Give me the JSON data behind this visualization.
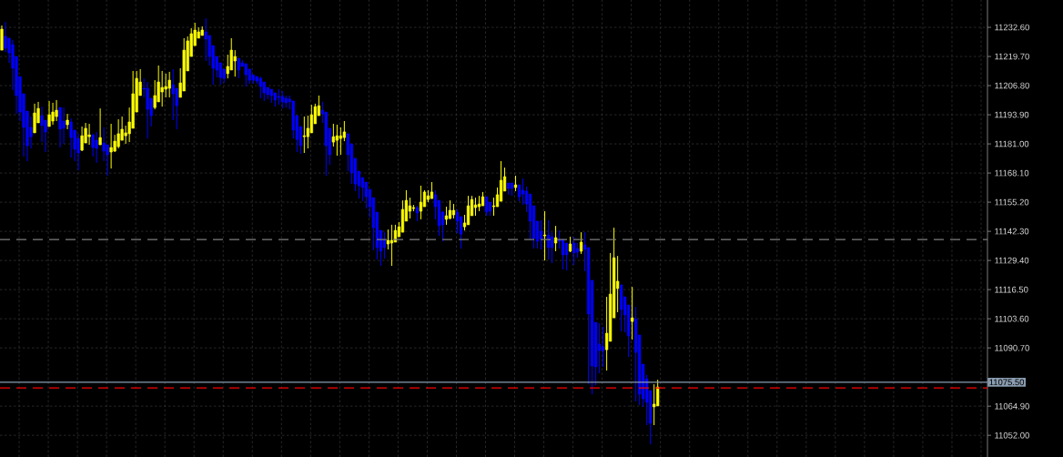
{
  "chart_data": {
    "type": "candlestick",
    "categories": [
      null,
      null,
      null,
      null,
      null,
      null,
      null,
      null,
      null,
      null,
      null,
      null,
      null,
      null,
      null,
      null,
      null,
      null,
      null,
      null,
      null,
      null,
      null,
      null,
      null,
      null,
      null,
      null,
      null,
      null,
      null,
      null,
      null,
      null,
      null,
      null,
      null,
      null,
      null,
      null,
      null,
      null,
      null,
      null,
      null,
      null,
      null,
      null,
      null,
      null,
      null,
      null,
      null,
      null,
      null,
      null,
      null,
      null,
      null,
      null,
      null,
      null,
      null,
      null,
      null,
      null,
      null,
      null,
      null,
      null,
      null,
      null,
      null,
      null,
      null,
      null,
      null,
      null,
      null,
      null,
      null,
      null,
      null,
      null,
      null,
      null,
      null,
      null,
      null,
      null,
      null,
      null,
      null,
      null,
      null,
      null,
      null,
      null,
      null,
      null,
      null,
      null,
      null,
      null,
      null,
      null,
      null,
      null,
      null,
      null,
      null,
      null,
      null,
      null,
      null,
      null,
      null,
      null,
      null,
      null,
      null,
      null,
      null,
      null,
      null,
      null,
      null,
      null,
      null,
      null,
      null,
      null,
      null,
      null,
      null,
      null,
      null,
      null,
      null,
      null,
      null,
      null,
      null,
      null,
      null,
      null,
      null,
      null,
      null,
      null,
      null,
      null,
      null,
      null,
      null,
      null,
      null,
      null,
      null,
      null,
      null,
      null,
      null,
      null,
      null,
      null,
      null,
      null,
      null,
      null,
      null,
      null,
      null,
      null,
      null,
      null,
      null,
      null,
      null,
      null,
      null,
      null,
      null,
      null,
      null,
      null,
      null,
      null,
      null,
      null,
      null,
      null,
      null,
      null,
      null,
      null,
      null,
      null,
      null,
      null,
      null,
      null,
      null,
      null,
      null,
      null,
      null,
      null,
      null,
      null,
      null,
      null,
      null,
      null,
      null,
      null,
      null,
      null,
      null,
      null,
      null,
      null,
      null,
      null,
      null,
      null,
      null,
      null,
      null,
      null,
      null,
      null,
      null,
      null,
      null,
      null,
      null,
      null,
      null,
      null,
      null,
      null,
      null,
      null,
      null,
      null,
      null,
      null,
      null,
      null,
      null,
      null,
      null,
      null,
      null,
      null,
      null,
      null,
      null,
      null,
      null,
      null,
      null,
      null,
      null,
      null,
      null,
      null,
      null,
      null,
      null
    ],
    "ohlc": [
      [
        11222.5,
        11233.4,
        11222.5,
        11231.8
      ],
      [
        11228.6,
        11235.0,
        11221.7,
        11223.3
      ],
      [
        11227.8,
        11227.8,
        11216.9,
        11221.3
      ],
      [
        11224.9,
        11227.0,
        11204.8,
        11214.5
      ],
      [
        11219.7,
        11219.7,
        11194.3,
        11202.4
      ],
      [
        11210.8,
        11210.8,
        11191.1,
        11195.1
      ],
      [
        11203.2,
        11203.2,
        11175.4,
        11188.3
      ],
      [
        11195.5,
        11195.5,
        11173.4,
        11180.2
      ],
      [
        11188.3,
        11193.1,
        11179.0,
        11184.2
      ],
      [
        11185.9,
        11198.8,
        11185.9,
        11194.7
      ],
      [
        11190.3,
        11199.6,
        11190.3,
        11196.7
      ],
      [
        11193.5,
        11197.5,
        11181.8,
        11189.1
      ],
      [
        11191.5,
        11191.5,
        11177.4,
        11186.3
      ],
      [
        11188.7,
        11200.0,
        11188.7,
        11193.9
      ],
      [
        11191.1,
        11199.2,
        11189.5,
        11195.1
      ],
      [
        11193.1,
        11200.4,
        11191.1,
        11195.9
      ],
      [
        11197.1,
        11197.1,
        11179.4,
        11187.5
      ],
      [
        11191.1,
        11197.1,
        11181.0,
        11187.9
      ],
      [
        11189.5,
        11194.3,
        11187.5,
        11191.5
      ],
      [
        11190.7,
        11192.3,
        11175.0,
        11183.8
      ],
      [
        11187.1,
        11187.1,
        11173.4,
        11178.6
      ],
      [
        11183.4,
        11185.5,
        11169.3,
        11177.0
      ],
      [
        11178.2,
        11188.7,
        11177.8,
        11184.6
      ],
      [
        11181.4,
        11190.3,
        11181.4,
        11187.9
      ],
      [
        11184.2,
        11189.9,
        11180.6,
        11185.0
      ],
      [
        11185.0,
        11185.5,
        11175.4,
        11179.4
      ],
      [
        11182.6,
        11186.3,
        11172.6,
        11179.0
      ],
      [
        11180.6,
        11196.7,
        11180.6,
        11183.8
      ],
      [
        11181.4,
        11188.3,
        11173.4,
        11177.8
      ],
      [
        11180.6,
        11180.6,
        11166.9,
        11176.2
      ],
      [
        11177.4,
        11189.9,
        11170.1,
        11179.4
      ],
      [
        11177.8,
        11185.0,
        11177.4,
        11182.2
      ],
      [
        11179.8,
        11191.9,
        11179.0,
        11185.5
      ],
      [
        11182.6,
        11193.1,
        11182.6,
        11187.5
      ],
      [
        11184.6,
        11189.1,
        11181.0,
        11185.9
      ],
      [
        11185.5,
        11197.1,
        11181.8,
        11190.7
      ],
      [
        11187.9,
        11213.3,
        11187.9,
        11203.2
      ],
      [
        11195.1,
        11213.3,
        11195.1,
        11210.0
      ],
      [
        11202.4,
        11214.1,
        11202.4,
        11208.4
      ],
      [
        11205.6,
        11210.0,
        11201.6,
        11205.2
      ],
      [
        11205.6,
        11208.4,
        11183.4,
        11196.3
      ],
      [
        11201.2,
        11201.2,
        11188.7,
        11193.5
      ],
      [
        11197.1,
        11209.2,
        11196.3,
        11202.4
      ],
      [
        11199.6,
        11215.7,
        11199.6,
        11208.4
      ],
      [
        11204.0,
        11213.3,
        11197.5,
        11206.0
      ],
      [
        11205.2,
        11212.1,
        11201.6,
        11206.4
      ],
      [
        11205.6,
        11212.9,
        11201.6,
        11209.2
      ],
      [
        11207.2,
        11214.1,
        11191.5,
        11203.2
      ],
      [
        11205.6,
        11205.6,
        11187.5,
        11197.9
      ],
      [
        11201.6,
        11214.5,
        11201.6,
        11208.0
      ],
      [
        11204.4,
        11227.8,
        11204.4,
        11222.5
      ],
      [
        11213.3,
        11228.6,
        11213.3,
        11226.6
      ],
      [
        11219.7,
        11232.2,
        11219.7,
        11229.8
      ],
      [
        11224.5,
        11234.6,
        11224.5,
        11231.4
      ],
      [
        11227.8,
        11232.6,
        11227.8,
        11230.6
      ],
      [
        11229.0,
        11233.0,
        11229.0,
        11231.4
      ],
      [
        11230.6,
        11236.6,
        11217.7,
        11227.4
      ],
      [
        11229.0,
        11229.0,
        11215.7,
        11219.7
      ],
      [
        11224.5,
        11224.5,
        11207.2,
        11214.5
      ],
      [
        11219.7,
        11219.7,
        11210.4,
        11213.7
      ],
      [
        11216.9,
        11216.9,
        11207.2,
        11210.4
      ],
      [
        11214.1,
        11214.1,
        11208.0,
        11210.0
      ],
      [
        11212.1,
        11220.5,
        11210.0,
        11215.3
      ],
      [
        11213.7,
        11227.8,
        11213.7,
        11222.5
      ],
      [
        11217.7,
        11222.5,
        11210.8,
        11219.7
      ],
      [
        11218.9,
        11218.9,
        11210.0,
        11213.7
      ],
      [
        11216.9,
        11218.1,
        11215.3,
        11215.3
      ],
      [
        11216.5,
        11216.5,
        11206.4,
        11211.6
      ],
      [
        11214.1,
        11214.1,
        11207.6,
        11209.2
      ],
      [
        11211.6,
        11211.6,
        11207.6,
        11209.2
      ],
      [
        11210.8,
        11210.8,
        11207.6,
        11208.8
      ],
      [
        11210.0,
        11210.8,
        11201.2,
        11206.4
      ],
      [
        11208.4,
        11208.4,
        11200.0,
        11203.6
      ],
      [
        11206.0,
        11206.0,
        11200.8,
        11202.8
      ],
      [
        11205.2,
        11205.2,
        11199.2,
        11202.4
      ],
      [
        11203.6,
        11203.6,
        11197.5,
        11200.4
      ],
      [
        11202.0,
        11205.2,
        11198.3,
        11201.6
      ],
      [
        11202.0,
        11204.4,
        11196.7,
        11199.6
      ],
      [
        11201.2,
        11202.4,
        11197.1,
        11199.2
      ],
      [
        11200.8,
        11202.4,
        11196.3,
        11199.6
      ],
      [
        11200.0,
        11200.0,
        11183.4,
        11187.1
      ],
      [
        11193.5,
        11193.5,
        11177.4,
        11183.0
      ],
      [
        11188.7,
        11188.7,
        11176.6,
        11180.2
      ],
      [
        11184.2,
        11193.1,
        11177.0,
        11184.6
      ],
      [
        11184.2,
        11193.5,
        11179.0,
        11187.9
      ],
      [
        11185.9,
        11198.3,
        11185.9,
        11193.9
      ],
      [
        11189.9,
        11198.8,
        11189.9,
        11197.5
      ],
      [
        11193.5,
        11202.4,
        11193.5,
        11197.9
      ],
      [
        11195.9,
        11199.6,
        11190.3,
        11194.3
      ],
      [
        11195.1,
        11195.1,
        11166.9,
        11180.2
      ],
      [
        11187.9,
        11187.9,
        11171.8,
        11176.2
      ],
      [
        11181.8,
        11189.9,
        11179.8,
        11184.2
      ],
      [
        11182.6,
        11189.5,
        11175.8,
        11184.6
      ],
      [
        11183.4,
        11188.3,
        11176.2,
        11184.6
      ],
      [
        11183.8,
        11191.1,
        11182.2,
        11186.3
      ],
      [
        11185.5,
        11185.5,
        11168.9,
        11176.2
      ],
      [
        11181.0,
        11181.0,
        11163.3,
        11168.1
      ],
      [
        11174.6,
        11174.6,
        11160.1,
        11163.3
      ],
      [
        11168.9,
        11168.9,
        11156.8,
        11162.5
      ],
      [
        11166.1,
        11166.1,
        11155.6,
        11161.7
      ],
      [
        11164.1,
        11164.1,
        11152.4,
        11157.6
      ],
      [
        11160.9,
        11160.9,
        11148.4,
        11153.2
      ],
      [
        11157.2,
        11157.2,
        11133.9,
        11143.9
      ],
      [
        11150.8,
        11150.8,
        11129.8,
        11135.1
      ],
      [
        11142.7,
        11142.7,
        11127.0,
        11133.5
      ],
      [
        11138.7,
        11141.9,
        11130.2,
        11135.1
      ],
      [
        11136.7,
        11143.1,
        11134.3,
        11138.3
      ],
      [
        11137.1,
        11145.2,
        11127.0,
        11138.3
      ],
      [
        11137.5,
        11145.2,
        11137.5,
        11142.7
      ],
      [
        11139.9,
        11146.4,
        11139.9,
        11144.3
      ],
      [
        11141.9,
        11156.0,
        11141.9,
        11152.0
      ],
      [
        11146.8,
        11160.5,
        11146.8,
        11156.0
      ],
      [
        11151.2,
        11157.2,
        11148.0,
        11153.6
      ],
      [
        11152.4,
        11154.0,
        11151.2,
        11152.8
      ],
      [
        11152.8,
        11153.6,
        11146.8,
        11150.4
      ],
      [
        11151.2,
        11162.5,
        11147.6,
        11155.2
      ],
      [
        11153.2,
        11160.5,
        11153.2,
        11159.7
      ],
      [
        11156.4,
        11160.5,
        11155.2,
        11158.0
      ],
      [
        11156.8,
        11164.1,
        11156.8,
        11159.7
      ],
      [
        11158.5,
        11160.5,
        11147.6,
        11153.2
      ],
      [
        11156.0,
        11156.0,
        11140.3,
        11144.8
      ],
      [
        11150.8,
        11151.2,
        11137.9,
        11145.2
      ],
      [
        11147.6,
        11153.2,
        11145.2,
        11149.2
      ],
      [
        11148.0,
        11156.0,
        11147.6,
        11151.6
      ],
      [
        11149.6,
        11154.4,
        11148.0,
        11151.6
      ],
      [
        11150.8,
        11152.0,
        11141.5,
        11146.8
      ],
      [
        11148.8,
        11148.8,
        11134.7,
        11141.1
      ],
      [
        11144.3,
        11149.6,
        11142.7,
        11146.0
      ],
      [
        11145.2,
        11158.0,
        11145.2,
        11153.6
      ],
      [
        11149.2,
        11158.0,
        11149.2,
        11156.4
      ],
      [
        11152.8,
        11157.2,
        11149.2,
        11154.0
      ],
      [
        11153.2,
        11158.0,
        11151.2,
        11154.4
      ],
      [
        11153.6,
        11159.7,
        11153.6,
        11157.6
      ],
      [
        11157.6,
        11157.6,
        11149.2,
        11150.8
      ],
      [
        11155.2,
        11155.2,
        11149.2,
        11151.2
      ],
      [
        11153.2,
        11157.2,
        11149.2,
        11153.6
      ],
      [
        11153.2,
        11161.7,
        11153.2,
        11158.5
      ],
      [
        11155.6,
        11173.4,
        11155.6,
        11164.9
      ],
      [
        11160.1,
        11170.5,
        11160.1,
        11166.5
      ],
      [
        11163.7,
        11163.7,
        11158.5,
        11161.3
      ],
      [
        11163.7,
        11163.7,
        11158.0,
        11161.3
      ],
      [
        11161.7,
        11166.9,
        11160.1,
        11162.9
      ],
      [
        11162.9,
        11162.9,
        11155.6,
        11157.6
      ],
      [
        11160.5,
        11165.7,
        11154.0,
        11158.8
      ],
      [
        11160.1,
        11162.1,
        11150.8,
        11154.4
      ],
      [
        11158.8,
        11158.8,
        11138.7,
        11146.8
      ],
      [
        11153.6,
        11153.6,
        11134.7,
        11139.1
      ],
      [
        11146.8,
        11146.8,
        11134.7,
        11137.9
      ],
      [
        11142.3,
        11147.2,
        11134.3,
        11138.7
      ],
      [
        11140.3,
        11151.2,
        11129.4,
        11140.7
      ],
      [
        11140.7,
        11147.2,
        11129.8,
        11135.1
      ],
      [
        11139.9,
        11141.9,
        11128.2,
        11135.1
      ],
      [
        11137.1,
        11144.7,
        11133.5,
        11139.5
      ],
      [
        11138.7,
        11142.7,
        11134.7,
        11137.9
      ],
      [
        11138.7,
        11138.7,
        11125.4,
        11131.9
      ],
      [
        11137.1,
        11137.1,
        11125.0,
        11131.9
      ],
      [
        11133.5,
        11139.9,
        11133.1,
        11136.7
      ],
      [
        11137.1,
        11139.9,
        11127.4,
        11132.7
      ],
      [
        11134.7,
        11137.1,
        11130.6,
        11133.1
      ],
      [
        11133.5,
        11141.9,
        11132.3,
        11137.5
      ],
      [
        11136.3,
        11141.9,
        11124.6,
        11134.3
      ],
      [
        11135.1,
        11135.1,
        11074.6,
        11105.7
      ],
      [
        11120.6,
        11120.6,
        11070.2,
        11082.7
      ],
      [
        11102.0,
        11102.0,
        11074.2,
        11082.3
      ],
      [
        11092.4,
        11101.6,
        11079.5,
        11089.5
      ],
      [
        11091.2,
        11100.0,
        11082.3,
        11089.5
      ],
      [
        11089.9,
        11113.3,
        11080.7,
        11097.2
      ],
      [
        11093.6,
        11132.7,
        11093.6,
        11114.5
      ],
      [
        11104.0,
        11143.9,
        11104.0,
        11130.6
      ],
      [
        11117.0,
        11131.4,
        11106.5,
        11120.2
      ],
      [
        11118.6,
        11118.6,
        11098.0,
        11107.7
      ],
      [
        11113.3,
        11113.3,
        11097.6,
        11105.3
      ],
      [
        11109.7,
        11109.7,
        11086.7,
        11096.0
      ],
      [
        11102.4,
        11117.7,
        11094.4,
        11104.0
      ],
      [
        11103.6,
        11108.9,
        11067.0,
        11088.7
      ],
      [
        11096.4,
        11096.4,
        11065.4,
        11070.2
      ],
      [
        11083.5,
        11083.5,
        11064.6,
        11068.2
      ],
      [
        11077.0,
        11078.7,
        11056.5,
        11066.6
      ],
      [
        11071.8,
        11071.8,
        11048.0,
        11057.3
      ],
      [
        11064.6,
        11074.6,
        11056.5,
        11065.8
      ],
      [
        11065.0,
        11076.6,
        11065.0,
        11073.4
      ],
      null,
      null,
      null,
      null,
      null,
      null,
      null,
      null,
      null,
      null,
      null,
      null,
      null,
      null,
      null,
      null,
      null,
      null,
      null,
      null,
      null,
      null,
      null,
      null,
      null,
      null,
      null,
      null,
      null,
      null,
      null,
      null,
      null,
      null,
      null,
      null,
      null,
      null,
      null,
      null,
      null,
      null,
      null,
      null,
      null,
      null,
      null,
      null,
      null,
      null,
      null,
      null,
      null,
      null,
      null,
      null,
      null,
      null,
      null,
      null,
      null,
      null,
      null,
      null,
      null,
      null,
      null,
      null,
      null,
      null,
      null,
      null,
      null,
      null,
      null,
      null,
      null,
      null,
      null,
      null,
      null,
      null,
      null,
      null,
      null,
      null,
      null,
      null,
      null,
      null
    ],
    "colors": [
      "#ffff00",
      "#0000ff",
      "#0000ff",
      "#0000ff",
      "#0000ff",
      "#0000ff",
      "#0000ff",
      "#0000ff",
      "#0000ff",
      "#ffff00",
      "#ffff00",
      "#0000ff",
      "#0000ff",
      "#ffff00",
      "#ffff00",
      "#ffff00",
      "#0000ff",
      "#0000ff",
      "#ffff00",
      "#0000ff",
      "#0000ff",
      "#0000ff",
      "#ffff00",
      "#ffff00",
      "#ffff00",
      "#0000ff",
      "#0000ff",
      "#ffff00",
      "#0000ff",
      "#0000ff",
      "#ffff00",
      "#ffff00",
      "#ffff00",
      "#ffff00",
      "#ffff00",
      "#ffff00",
      "#ffff00",
      "#ffff00",
      "#ffff00",
      "#0000ff",
      "#0000ff",
      "#0000ff",
      "#ffff00",
      "#ffff00",
      "#ffff00",
      "#ffff00",
      "#ffff00",
      "#0000ff",
      "#0000ff",
      "#ffff00",
      "#ffff00",
      "#ffff00",
      "#ffff00",
      "#ffff00",
      "#ffff00",
      "#ffff00",
      "#0000ff",
      "#0000ff",
      "#0000ff",
      "#0000ff",
      "#0000ff",
      "#0000ff",
      "#ffff00",
      "#ffff00",
      "#ffff00",
      "#0000ff",
      "#0000ff",
      "#0000ff",
      "#0000ff",
      "#0000ff",
      "#0000ff",
      "#0000ff",
      "#0000ff",
      "#0000ff",
      "#0000ff",
      "#0000ff",
      "#0000ff",
      "#0000ff",
      "#0000ff",
      "#0000ff",
      "#0000ff",
      "#0000ff",
      "#0000ff",
      "#ffff00",
      "#ffff00",
      "#ffff00",
      "#ffff00",
      "#ffff00",
      "#0000ff",
      "#0000ff",
      "#0000ff",
      "#ffff00",
      "#ffff00",
      "#ffff00",
      "#ffff00",
      "#0000ff",
      "#0000ff",
      "#0000ff",
      "#0000ff",
      "#0000ff",
      "#0000ff",
      "#0000ff",
      "#0000ff",
      "#0000ff",
      "#0000ff",
      "#0000ff",
      "#ffff00",
      "#ffff00",
      "#ffff00",
      "#ffff00",
      "#ffff00",
      "#ffff00",
      "#ffff00",
      "#ffff00",
      "#0000ff",
      "#ffff00",
      "#ffff00",
      "#ffff00",
      "#ffff00",
      "#0000ff",
      "#0000ff",
      "#0000ff",
      "#ffff00",
      "#ffff00",
      "#ffff00",
      "#0000ff",
      "#0000ff",
      "#ffff00",
      "#ffff00",
      "#ffff00",
      "#ffff00",
      "#ffff00",
      "#ffff00",
      "#0000ff",
      "#0000ff",
      "#ffff00",
      "#ffff00",
      "#ffff00",
      "#ffff00",
      "#0000ff",
      "#0000ff",
      "#ffff00",
      "#0000ff",
      "#0000ff",
      "#0000ff",
      "#0000ff",
      "#0000ff",
      "#0000ff",
      "#0000ff",
      "#ffff00",
      "#0000ff",
      "#0000ff",
      "#ffff00",
      "#0000ff",
      "#0000ff",
      "#0000ff",
      "#ffff00",
      "#0000ff",
      "#0000ff",
      "#ffff00",
      "#0000ff",
      "#0000ff",
      "#0000ff",
      "#0000ff",
      "#0000ff",
      "#0000ff",
      "#ffff00",
      "#ffff00",
      "#ffff00",
      "#ffff00",
      "#0000ff",
      "#0000ff",
      "#0000ff",
      "#ffff00",
      "#0000ff",
      "#0000ff",
      "#0000ff",
      "#0000ff",
      "#0000ff",
      "#ffff00",
      "#ffff00",
      null,
      null,
      null,
      null,
      null,
      null,
      null,
      null,
      null,
      null,
      null,
      null,
      null,
      null,
      null,
      null,
      null,
      null,
      null,
      null,
      null,
      null,
      null,
      null,
      null,
      null,
      null,
      null,
      null,
      null,
      null,
      null,
      null,
      null,
      null,
      null,
      null,
      null,
      null,
      null,
      null,
      null,
      null,
      null,
      null,
      null,
      null,
      null,
      null,
      null,
      null,
      null,
      null,
      null,
      null,
      null,
      null,
      null,
      null,
      null,
      null,
      null,
      null,
      null,
      null,
      null,
      null,
      null,
      null,
      null,
      null,
      null,
      null,
      null,
      null,
      null,
      null,
      null,
      null,
      null,
      null,
      null,
      null,
      null,
      null,
      null,
      null,
      null,
      null,
      null
    ],
    "ylim": [
      11042.4,
      11244.7
    ],
    "yticks": [
      {
        "value": 11052.0,
        "label": "11052.00"
      },
      {
        "value": 11064.9,
        "label": "11064.90"
      },
      {
        "value": 11090.7,
        "label": "11090.70"
      },
      {
        "value": 11103.6,
        "label": "11103.60"
      },
      {
        "value": 11116.5,
        "label": "11116.50"
      },
      {
        "value": 11129.4,
        "label": "11129.40"
      },
      {
        "value": 11142.3,
        "label": "11142.30"
      },
      {
        "value": 11155.2,
        "label": "11155.20"
      },
      {
        "value": 11168.1,
        "label": "11168.10"
      },
      {
        "value": 11181.0,
        "label": "11181.00"
      },
      {
        "value": 11193.9,
        "label": "11193.90"
      },
      {
        "value": 11206.8,
        "label": "11206.80"
      },
      {
        "value": 11219.7,
        "label": "11219.70"
      },
      {
        "value": 11232.6,
        "label": "11232.60"
      }
    ],
    "ref_lines": [
      {
        "axis": "y",
        "value": 11138.7,
        "color": "#7f7f7f",
        "line_style": "dashed"
      },
      {
        "axis": "y",
        "value": 11075.5,
        "label": "11075.50",
        "color": "#8a9cb0",
        "line_style": "solid"
      },
      {
        "axis": "y",
        "value": 11073.0,
        "color": "#ff0000",
        "line_style": "dashed"
      }
    ],
    "grid": true,
    "tick_labels": "y"
  }
}
